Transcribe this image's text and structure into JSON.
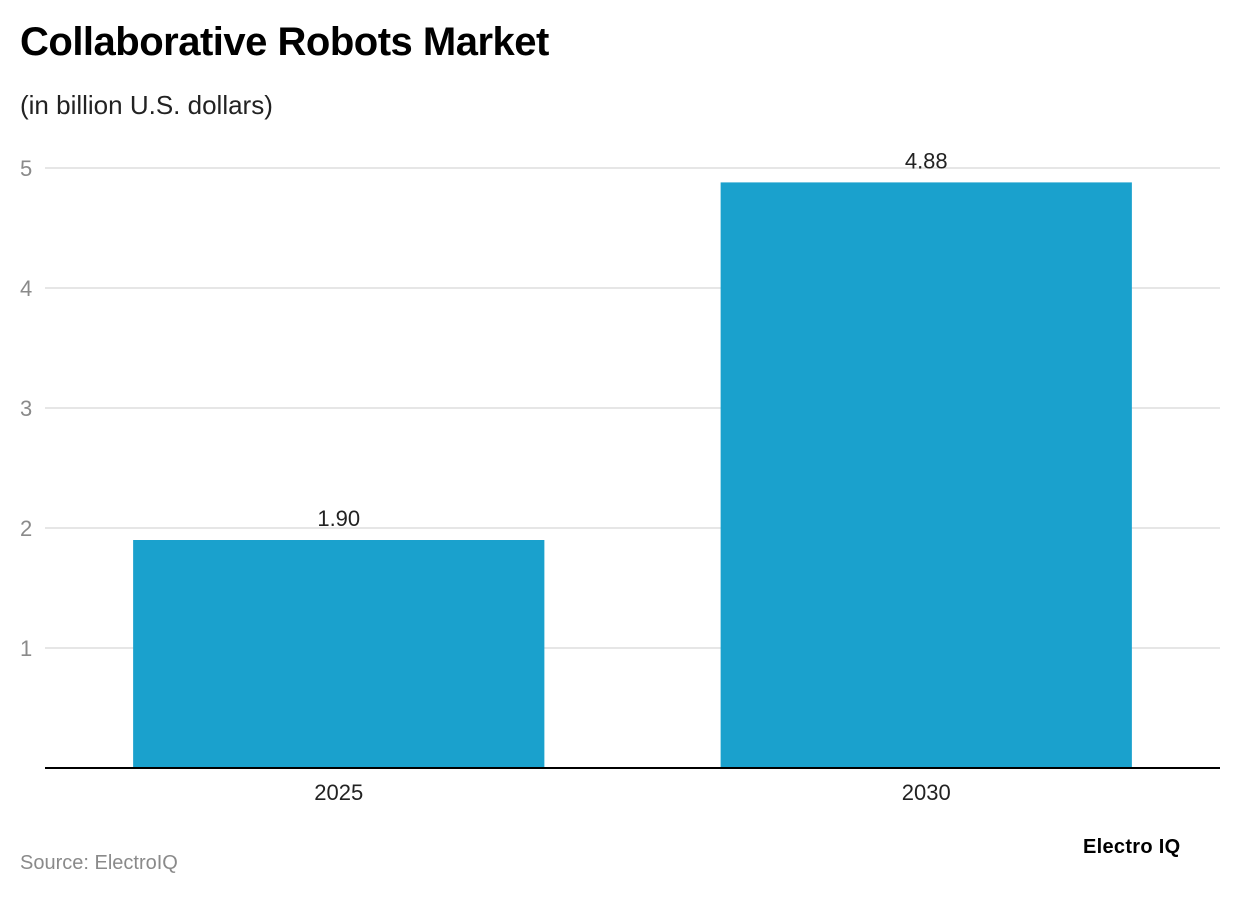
{
  "header": {
    "title": "Collaborative Robots Market",
    "subtitle": "(in billion U.S. dollars)"
  },
  "footer": {
    "source": "Source: ElectroIQ",
    "brand": "Electro IQ"
  },
  "colors": {
    "bar": "#1aa1cd",
    "grid": "#dddddd",
    "axis": "#000000",
    "tick_label": "#8a8a8a"
  },
  "chart_data": {
    "type": "bar",
    "title": "Collaborative Robots Market",
    "subtitle": "(in billion U.S. dollars)",
    "categories": [
      "2025",
      "2030"
    ],
    "values": [
      1.9,
      4.88
    ],
    "data_labels": [
      "1.90",
      "4.88"
    ],
    "ylim": [
      0,
      5
    ],
    "yticks": [
      1,
      2,
      3,
      4,
      5
    ],
    "grid": true,
    "legend": "none"
  }
}
